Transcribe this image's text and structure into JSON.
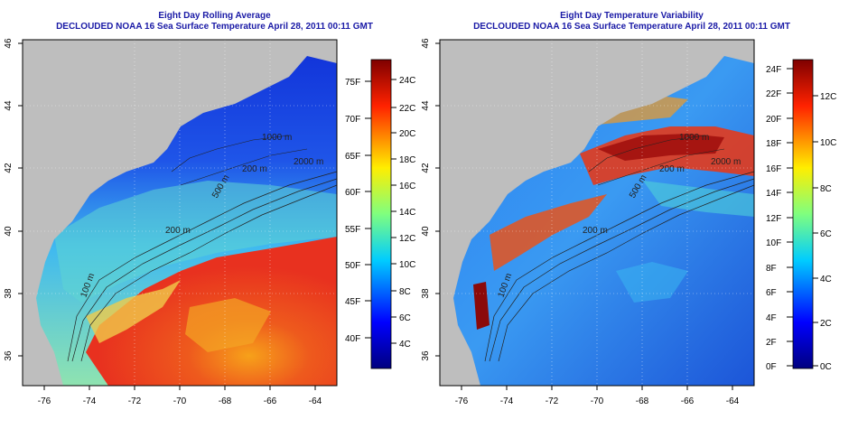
{
  "panels": [
    {
      "title": "Eight Day Rolling Average",
      "subtitle": "DECLOUDED NOAA 16 Sea Surface Temperature April 28, 2011 00:11 GMT",
      "colorbar_right": [
        "75F",
        "70F",
        "65F",
        "60F",
        "55F",
        "50F",
        "45F",
        "40F"
      ],
      "colorbar_left": [
        "24C",
        "22C",
        "20C",
        "18C",
        "16C",
        "14C",
        "12C",
        "10C",
        "8C",
        "6C",
        "4C"
      ],
      "contours": [
        "200 m",
        "500 m",
        "1000 m",
        "2000 m",
        "200 m",
        "100 m"
      ]
    },
    {
      "title": "Eight Day Temperature Variability",
      "subtitle": "DECLOUDED NOAA 16 Sea Surface Temperature April 28, 2011 00:11 GMT",
      "colorbar_right": [
        "24F",
        "22F",
        "20F",
        "18F",
        "16F",
        "14F",
        "12F",
        "10F",
        "8F",
        "6F",
        "4F",
        "2F",
        "0F"
      ],
      "colorbar_left": [
        "12C",
        "10C",
        "8C",
        "6C",
        "4C",
        "2C",
        "0C"
      ],
      "contours": [
        "200 m",
        "500 m",
        "1000 m",
        "2000 m",
        "200 m",
        "100 m"
      ]
    }
  ],
  "axes": {
    "x_ticks": [
      "-76",
      "-74",
      "-72",
      "-70",
      "-68",
      "-66",
      "-64"
    ],
    "y_ticks": [
      "46",
      "44",
      "42",
      "40",
      "38",
      "36"
    ]
  },
  "colors": {
    "land": "#bebebe",
    "title": "#1a1aa6",
    "contour": "#222222"
  }
}
